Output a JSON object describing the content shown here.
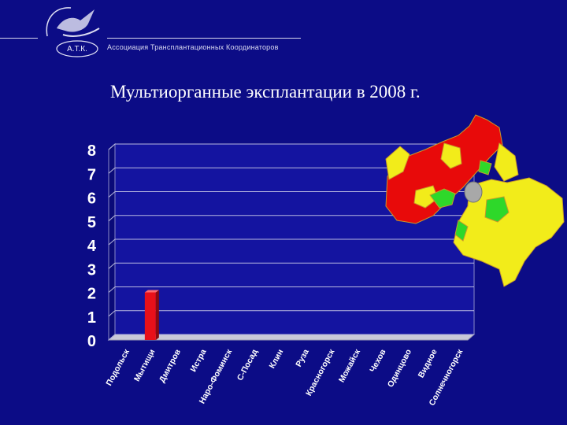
{
  "header": {
    "logo_text": "А.Т.К.",
    "organization": "Ассоциация Трансплантационных Координаторов"
  },
  "slide": {
    "title": "Мультиорганные эксплантации в 2008 г."
  },
  "chart_data": {
    "type": "bar",
    "title": "",
    "xlabel": "",
    "ylabel": "",
    "ylim": [
      0,
      8
    ],
    "grid": true,
    "categories": [
      "Подольск",
      "Мытищи",
      "Дмитров",
      "Истра",
      "Наро-Фоминск",
      "С-Посад",
      "Клин",
      "Руза",
      "Красногорск",
      "Можайск",
      "Чехов",
      "Одинцово",
      "Видное",
      "Солнечногорск"
    ],
    "values": [
      0,
      2,
      0,
      0,
      0,
      0,
      0,
      0,
      0,
      0,
      0,
      0,
      0,
      0
    ],
    "bar_color": "#e8101a",
    "tick_color": "#ffffff"
  },
  "map": {
    "caption": "",
    "colors": {
      "red": "#e80a0a",
      "yellow": "#f2ec1a",
      "green": "#2ed82a",
      "city": "#a8a8a8"
    }
  }
}
